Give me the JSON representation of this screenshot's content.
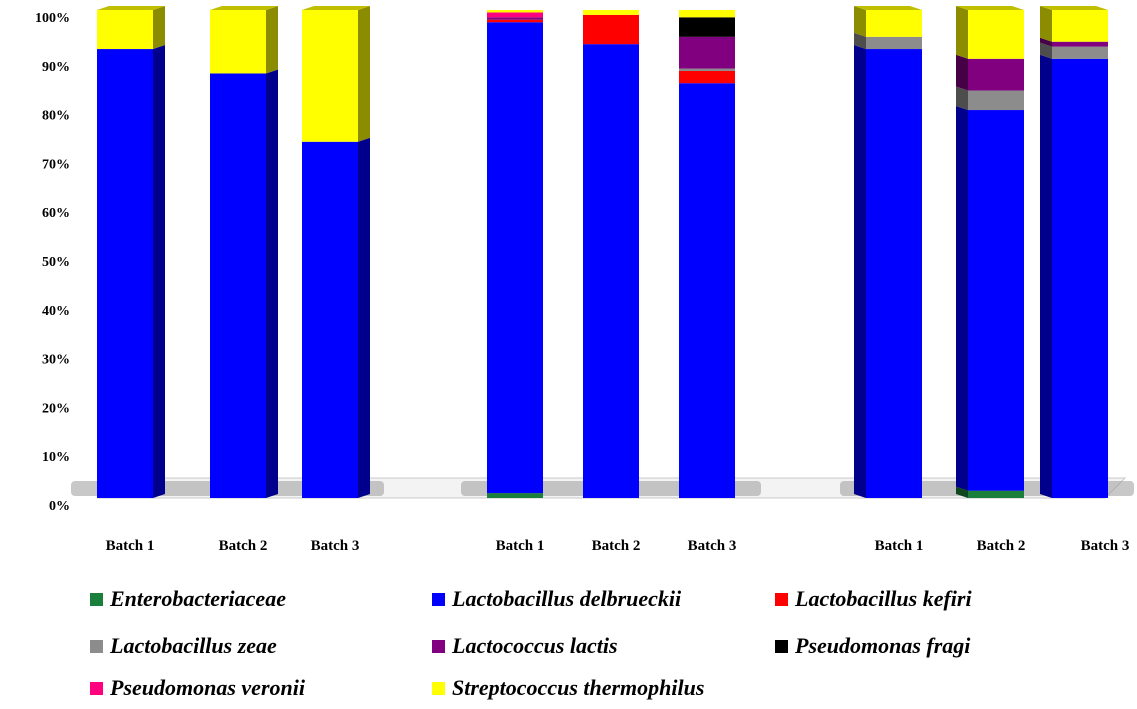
{
  "chart_data": {
    "type": "bar",
    "stacked": true,
    "three_d": true,
    "title": "",
    "xlabel": "",
    "ylabel": "",
    "ylim": [
      0,
      100
    ],
    "yticks": [
      "0%",
      "10%",
      "20%",
      "30%",
      "40%",
      "50%",
      "60%",
      "70%",
      "80%",
      "90%",
      "100%"
    ],
    "grid": false,
    "legend_position": "bottom",
    "categories": [
      "Batch 1",
      "Batch 2",
      "Batch 3",
      "Batch 1",
      "Batch 2",
      "Batch 3",
      "Batch 1",
      "Batch 2",
      "Batch 3"
    ],
    "groups": [
      [
        0,
        1,
        2
      ],
      [
        3,
        4,
        5
      ],
      [
        6,
        7,
        8
      ]
    ],
    "series": [
      {
        "name": "Enterobacteriaceae",
        "color": "#1a7f3a",
        "values": [
          0,
          0,
          0,
          1,
          0,
          0,
          0,
          1.5,
          0
        ]
      },
      {
        "name": "Lactobacillus delbrueckii",
        "color": "#0000ff",
        "values": [
          92,
          87,
          73,
          96.5,
          93,
          85,
          92,
          78,
          90
        ]
      },
      {
        "name": "Lactobacillus kefiri",
        "color": "#ff0000",
        "values": [
          0,
          0,
          0,
          0.5,
          6,
          2.5,
          0,
          0,
          0
        ]
      },
      {
        "name": "Lactobacillus zeae",
        "color": "#8c8c8c",
        "values": [
          0,
          0,
          0,
          0,
          0,
          0.5,
          2.5,
          4,
          2.5
        ]
      },
      {
        "name": "Lactococcus lactis",
        "color": "#800080",
        "values": [
          0,
          0,
          0,
          0.5,
          0,
          6.5,
          0,
          6.5,
          1
        ]
      },
      {
        "name": "Pseudomonas fragi",
        "color": "#000000",
        "values": [
          0,
          0,
          0,
          0,
          0,
          4,
          0,
          0,
          0
        ]
      },
      {
        "name": "Pseudomonas veronii",
        "color": "#ff007f",
        "values": [
          0,
          0,
          0,
          1,
          0,
          0,
          0,
          0,
          0
        ]
      },
      {
        "name": "Streptococcus thermophilus",
        "color": "#ffff00",
        "values": [
          8,
          13,
          27,
          0.5,
          1,
          1.5,
          5.5,
          10,
          6.5
        ]
      }
    ]
  }
}
